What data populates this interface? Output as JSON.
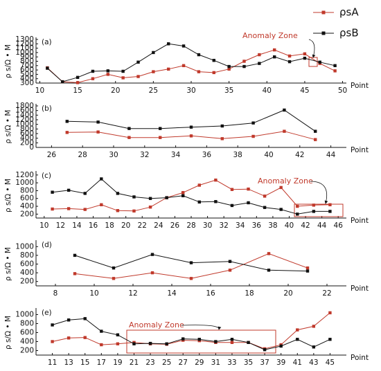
{
  "chart_data": [
    {
      "type": "line",
      "panel_label": "(a)",
      "xlabel": "Point",
      "ylabel": "ρ s/Ω • M",
      "annotation": "Anomaly Zone",
      "x": [
        11,
        13,
        15,
        17,
        19,
        21,
        23,
        25,
        27,
        29,
        31,
        33,
        35,
        37,
        39,
        41,
        43,
        45,
        47,
        49
      ],
      "xlim": [
        9.5,
        50.5
      ],
      "xticks": [
        10,
        15,
        20,
        25,
        30,
        35,
        40,
        45,
        50
      ],
      "ylim": [
        300,
        1300
      ],
      "yticks": [
        300,
        400,
        500,
        600,
        700,
        800,
        900,
        1000,
        1100,
        1200,
        1300
      ],
      "series": [
        {
          "name": "ρsA",
          "color": "#c0392b",
          "values": [
            650,
            330,
            310,
            400,
            500,
            420,
            450,
            560,
            620,
            700,
            560,
            540,
            620,
            800,
            950,
            1060,
            920,
            970,
            750,
            580
          ]
        },
        {
          "name": "ρsB",
          "color": "#111111",
          "values": [
            640,
            330,
            430,
            570,
            580,
            570,
            780,
            1000,
            1200,
            1150,
            950,
            820,
            680,
            680,
            750,
            900,
            790,
            870,
            780,
            700
          ]
        }
      ]
    },
    {
      "type": "line",
      "panel_label": "(b)",
      "xlabel": "Point",
      "ylabel": "ρ s/Ω • M",
      "x": [
        27,
        29,
        31,
        33,
        35,
        37,
        39,
        41,
        43
      ],
      "xlim": [
        25,
        45
      ],
      "xticks": [
        26,
        28,
        30,
        32,
        34,
        36,
        38,
        40,
        42,
        44
      ],
      "ylim": [
        0,
        1800
      ],
      "yticks": [
        0,
        200,
        400,
        600,
        800,
        1000,
        1200,
        1400,
        1600,
        1800
      ],
      "series": [
        {
          "color": "#c0392b",
          "values": [
            650,
            670,
            430,
            430,
            500,
            380,
            480,
            700,
            340
          ]
        },
        {
          "color": "#111111",
          "values": [
            1130,
            1100,
            820,
            820,
            880,
            930,
            1060,
            1620,
            700
          ]
        }
      ]
    },
    {
      "type": "line",
      "panel_label": "(c)",
      "xlabel": "Point",
      "ylabel": "ρ s/Ω • M",
      "annotation": "Anomaly Zone",
      "x": [
        11,
        13,
        15,
        17,
        19,
        21,
        23,
        25,
        27,
        29,
        31,
        33,
        35,
        37,
        39,
        41,
        43,
        45
      ],
      "xlim": [
        9,
        47
      ],
      "xticks": [
        10,
        12,
        14,
        16,
        18,
        20,
        22,
        24,
        26,
        28,
        30,
        32,
        34,
        36,
        38,
        40,
        42,
        44,
        46
      ],
      "ylim": [
        100,
        1250
      ],
      "yticks": [
        200,
        400,
        600,
        800,
        1000,
        1200
      ],
      "series": [
        {
          "color": "#c0392b",
          "values": [
            330,
            340,
            320,
            440,
            290,
            280,
            380,
            620,
            750,
            940,
            1070,
            830,
            840,
            660,
            880,
            400,
            430,
            440
          ]
        },
        {
          "color": "#111111",
          "values": [
            760,
            810,
            730,
            1100,
            730,
            640,
            600,
            620,
            670,
            510,
            520,
            420,
            490,
            370,
            320,
            200,
            270,
            270
          ]
        }
      ]
    },
    {
      "type": "line",
      "panel_label": "(d)",
      "xlabel": "Point",
      "ylabel": "ρ s/Ω • M",
      "x": [
        9,
        11,
        13,
        15,
        17,
        19,
        21
      ],
      "xlim": [
        7,
        23
      ],
      "xticks": [
        8,
        10,
        12,
        14,
        16,
        18,
        20,
        22
      ],
      "ylim": [
        100,
        1100
      ],
      "yticks": [
        200,
        400,
        600,
        800,
        1000
      ],
      "series": [
        {
          "color": "#c0392b",
          "values": [
            380,
            270,
            400,
            270,
            460,
            840,
            510
          ]
        },
        {
          "color": "#111111",
          "values": [
            800,
            510,
            820,
            630,
            660,
            460,
            440
          ]
        }
      ]
    },
    {
      "type": "line",
      "panel_label": "(e)",
      "xlabel": "Point",
      "ylabel": "ρ s/Ω • M",
      "annotation": "Anomaly Zone",
      "x": [
        11,
        13,
        15,
        17,
        19,
        21,
        23,
        25,
        27,
        29,
        31,
        33,
        35,
        37,
        39,
        41,
        43,
        45
      ],
      "xlim": [
        9,
        47
      ],
      "xticks": [
        11,
        13,
        15,
        17,
        19,
        21,
        23,
        25,
        27,
        29,
        31,
        33,
        35,
        37,
        39,
        41,
        43,
        45
      ],
      "ylim": [
        100,
        1100
      ],
      "yticks": [
        200,
        400,
        600,
        800,
        1000
      ],
      "series": [
        {
          "color": "#c0392b",
          "values": [
            400,
            480,
            490,
            330,
            350,
            380,
            350,
            340,
            430,
            420,
            380,
            380,
            380,
            240,
            330,
            660,
            740,
            1040
          ]
        },
        {
          "color": "#111111",
          "values": [
            770,
            880,
            910,
            630,
            550,
            350,
            360,
            350,
            460,
            450,
            400,
            450,
            380,
            220,
            300,
            450,
            280,
            450
          ]
        }
      ]
    }
  ]
}
